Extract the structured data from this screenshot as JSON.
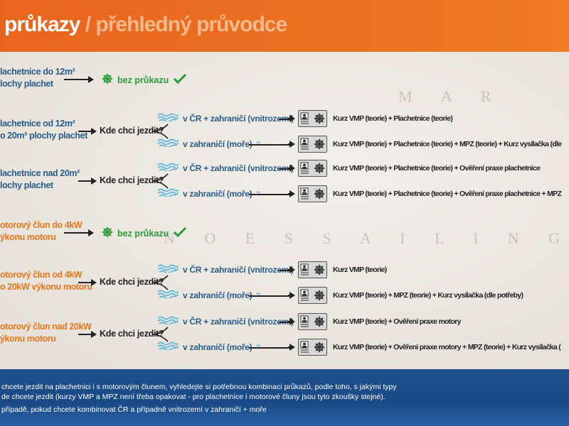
{
  "header": {
    "title": "průkazy",
    "subtitle": "/ přehledný průvodce"
  },
  "map_words": [
    "M A R",
    "N O E S   S A I L I N G"
  ],
  "common": {
    "question": "Kde chci jezdit?",
    "free": "bez průkazu",
    "opt_inland": "v ČR + zahraničí (vnitrozemí)",
    "opt_sea": "v zahraničí (moře)",
    "sea_mark": "**"
  },
  "rows": [
    {
      "lines": [
        "lachetnice do 12m²",
        "lochy plachet"
      ],
      "type": "free",
      "color": "blue"
    },
    {
      "lines": [
        "lachetnice od 12m²",
        "o 20m² plochy plachet"
      ],
      "type": "choice",
      "color": "blue",
      "inland": "Kurz VMP (teorie) + Plachetnice (teorie)",
      "sea": "Kurz VMP (teorie) + Plachetnice (teorie) + MPZ (teorie) + Kurz vysílačka (dle"
    },
    {
      "lines": [
        "lachetnice nad 20m²",
        "lochy plachet"
      ],
      "type": "choice",
      "color": "blue",
      "inland": "Kurz VMP (teorie) + Plachetnice (teorie) + Ověření praxe plachetnice",
      "sea": "Kurz VMP (teorie) + Plachetnice (teorie) + Ověření praxe plachetnice + MPZ"
    },
    {
      "lines": [
        "otorový člun do 4kW",
        "ýkonu motoru"
      ],
      "type": "free",
      "color": "orange"
    },
    {
      "lines": [
        "otorový člun od 4kW",
        "o 20kW výkonu motoru"
      ],
      "type": "choice",
      "color": "orange",
      "inland": "Kurz VMP (teorie)",
      "sea": "Kurz VMP (teorie) + MPZ (teorie) + Kurz vysílačka (dle potřeby)"
    },
    {
      "lines": [
        "otorový člun nad 20kW",
        "ýkonu motoru"
      ],
      "type": "choice",
      "color": "orange",
      "inland": "Kurz VMP (teorie) + Ověření praxe motory",
      "sea": "Kurz VMP (teorie) + Ověření praxe motory + MPZ (teorie) + Kurz vysílačka ("
    }
  ],
  "footer": {
    "lines": [
      "chcete jezdit na plachetnici i s motorovým člunem, vyhledejte si potřebnou kombinaci průkazů, podle toho, s jakými typy",
      "de chcete jezdit (kurzy VMP a MPZ není třeba opakovat - pro plachetnice i motorové čluny jsou tyto zkoušky stejné).",
      "případě, pokud chcete kombinovat ČR a případně vnitrozemí v zahraničí + moře"
    ]
  },
  "colors": {
    "header": "#e8651e",
    "blue_text": "#2b5d8c",
    "orange_text": "#e8761e",
    "green": "#2a9a3c",
    "footer": "#1d4f8c"
  }
}
